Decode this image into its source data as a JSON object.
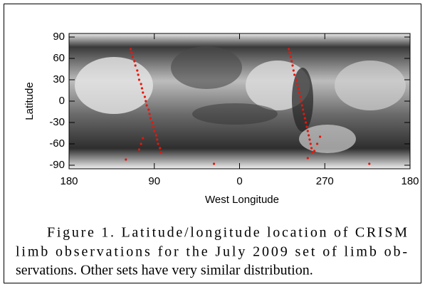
{
  "chart_data": {
    "type": "scatter",
    "xlabel": "West Longitude",
    "ylabel": "Latitude",
    "xlim": [
      180,
      -180
    ],
    "xticks": [
      180,
      90,
      0,
      {
        "value": -90,
        "label": "270"
      },
      {
        "value": -180,
        "label": "180"
      }
    ],
    "ylim": [
      -95,
      95
    ],
    "yticks": [
      90,
      60,
      30,
      0,
      -30,
      -60,
      -90
    ],
    "color": "#e8160c",
    "x": [
      115,
      114,
      113,
      111,
      110,
      108,
      107,
      106,
      104,
      103,
      102,
      100,
      99,
      98,
      96,
      95,
      94,
      92,
      91,
      90,
      88,
      87,
      86,
      84,
      83,
      102,
      104,
      106,
      120,
      27,
      -52,
      -53,
      -54,
      -55,
      -56,
      -57,
      -58,
      -60,
      -61,
      -62,
      -63,
      -64,
      -65,
      -66,
      -67,
      -68,
      -69,
      -70,
      -71,
      -72,
      -73,
      -74,
      -75,
      -76,
      -77,
      -85,
      -82,
      -79,
      -72,
      -137
    ],
    "values": [
      73,
      68,
      62,
      56,
      50,
      43,
      37,
      30,
      24,
      18,
      12,
      6,
      0,
      -6,
      -12,
      -18,
      -24,
      -30,
      -36,
      -42,
      -48,
      -54,
      -60,
      -66,
      -72,
      -52,
      -60,
      -68,
      -82,
      -88,
      73,
      68,
      62,
      56,
      50,
      43,
      37,
      30,
      24,
      18,
      12,
      6,
      0,
      -6,
      -12,
      -18,
      -24,
      -30,
      -36,
      -42,
      -48,
      -54,
      -60,
      -66,
      -72,
      -50,
      -60,
      -70,
      -80,
      -88
    ]
  },
  "caption": {
    "lines": [
      "Figure 1. Latitude/longitude location of CRISM",
      "limb observations for the July 2009 set of limb ob-",
      "servations. Other sets have very similar distribution."
    ]
  }
}
